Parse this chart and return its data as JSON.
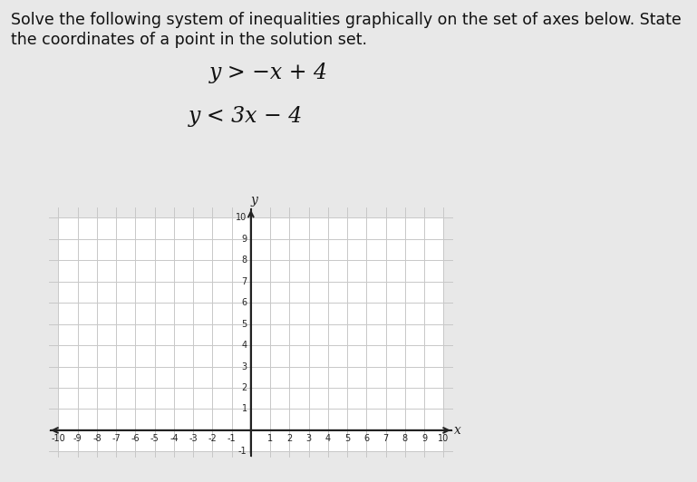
{
  "title_line1": "Solve the following system of inequalities graphically on the set of axes below. State",
  "title_line2": "the coordinates of a point in the solution set.",
  "ineq1_display": "y > −x + 4",
  "ineq2_display": "y < 3x − 4",
  "xmin": -10,
  "xmax": 10,
  "ymin": -1,
  "ymax": 10,
  "xticks": [
    -10,
    -9,
    -8,
    -7,
    -6,
    -5,
    -4,
    -3,
    -2,
    -1,
    1,
    2,
    3,
    4,
    5,
    6,
    7,
    8,
    9,
    10
  ],
  "yticks": [
    1,
    2,
    3,
    4,
    5,
    6,
    7,
    8,
    9,
    10
  ],
  "grid_color": "#c8c8c8",
  "axis_color": "#222222",
  "background_color": "#e8e8e8",
  "plot_bg": "#e8e8e8",
  "text_color": "#111111",
  "title_fontsize": 12.5,
  "eq_fontsize": 17
}
